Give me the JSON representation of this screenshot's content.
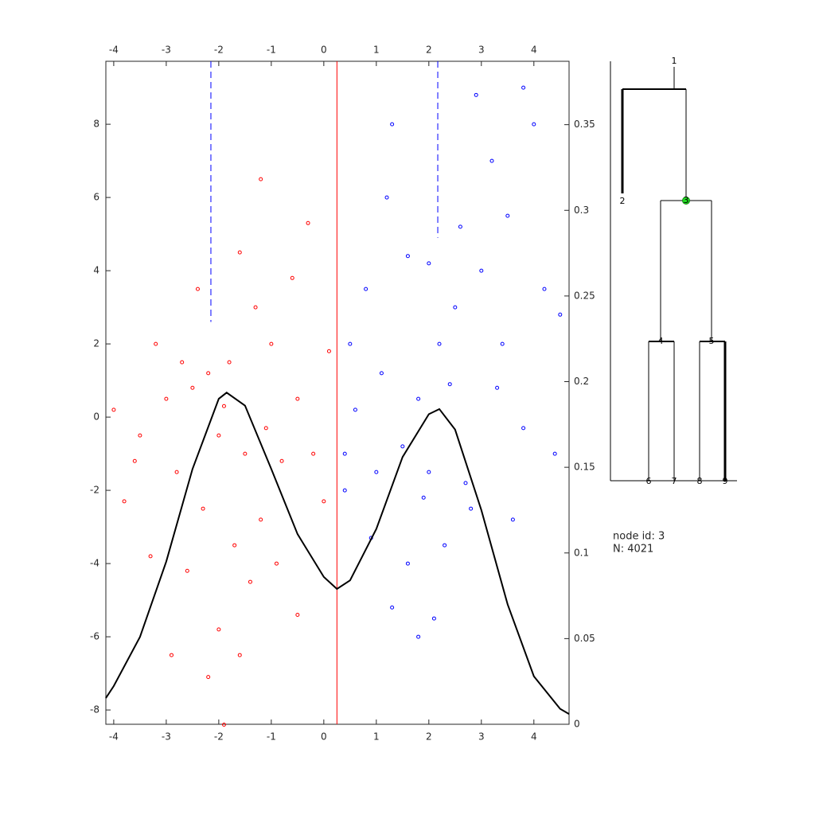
{
  "chart_data": {
    "type": "scatter",
    "xlim": [
      -4.15,
      4.67
    ],
    "ylim": [
      -8.39,
      9.72
    ],
    "y2lim": [
      0,
      0.387
    ],
    "xticks": [
      -4,
      -3,
      -2,
      -1,
      0,
      1,
      2,
      3,
      4
    ],
    "yticks": [
      -8,
      -6,
      -4,
      -2,
      0,
      2,
      4,
      6,
      8
    ],
    "y2ticks": [
      0,
      0.05,
      0.1,
      0.15,
      0.2,
      0.25,
      0.3,
      0.35
    ],
    "series": [
      {
        "type": "scatter",
        "color": "#ff0000",
        "x": [
          -2.2,
          -2.5,
          -3.0,
          -1.8,
          -2.0,
          -1.5,
          -3.5,
          -2.8,
          -2.3,
          -1.7,
          -1.4,
          -2.0,
          -1.6,
          -1.2,
          -0.8,
          -0.5,
          -0.2,
          0.1,
          -1.0,
          -1.3,
          -1.6,
          -1.2,
          -3.2,
          -3.8,
          -4.0,
          -3.3,
          -2.6,
          -2.2,
          -1.9,
          -0.9,
          -0.5,
          -2.9,
          -0.3,
          -2.4,
          -1.9,
          -2.7,
          -3.6,
          -1.1,
          -0.6,
          0.0
        ],
        "values": [
          1.2,
          0.8,
          0.5,
          1.5,
          -0.5,
          -1.0,
          -0.5,
          -1.5,
          -2.5,
          -3.5,
          -4.5,
          -5.8,
          -6.5,
          -2.8,
          -1.2,
          0.5,
          -1.0,
          1.8,
          2.0,
          3.0,
          4.5,
          6.5,
          2.0,
          -2.3,
          0.2,
          -3.8,
          -4.2,
          -7.1,
          -8.4,
          -4.0,
          -5.4,
          -6.5,
          5.3,
          3.5,
          0.3,
          1.5,
          -1.2,
          -0.3,
          3.8,
          -2.3
        ]
      },
      {
        "type": "scatter",
        "color": "#0000ff",
        "x": [
          2.2,
          2.5,
          1.8,
          2.0,
          1.5,
          1.0,
          0.6,
          0.4,
          2.8,
          3.0,
          3.5,
          3.8,
          4.0,
          2.9,
          3.2,
          1.3,
          1.2,
          0.8,
          0.5,
          1.6,
          2.6,
          3.4,
          4.2,
          4.4,
          3.8,
          2.3,
          1.6,
          1.3,
          2.1,
          1.8,
          3.6,
          0.9,
          0.4,
          2.4,
          1.9,
          3.3,
          2.7,
          4.5,
          1.1,
          2.0
        ],
        "values": [
          2.0,
          3.0,
          0.5,
          -1.5,
          -0.8,
          -1.5,
          0.2,
          -2.0,
          -2.5,
          4.0,
          5.5,
          9.0,
          8.0,
          8.8,
          7.0,
          8.0,
          6.0,
          3.5,
          2.0,
          4.4,
          5.2,
          2.0,
          3.5,
          -1.0,
          -0.3,
          -3.5,
          -4.0,
          -5.2,
          -5.5,
          -6.0,
          -2.8,
          -3.3,
          -1.0,
          0.9,
          -2.2,
          0.8,
          -1.8,
          2.8,
          1.2,
          4.2
        ]
      },
      {
        "type": "line",
        "axis": "y2",
        "color": "#000000",
        "x": [
          -4.15,
          -4,
          -3.5,
          -3,
          -2.5,
          -2,
          -1.85,
          -1.5,
          -1,
          -0.5,
          0,
          0.25,
          0.5,
          1,
          1.5,
          2,
          2.2,
          2.5,
          3,
          3.5,
          4,
          4.5,
          4.67
        ],
        "values": [
          0.0153,
          0.0223,
          0.051,
          0.095,
          0.149,
          0.19,
          0.1936,
          0.186,
          0.149,
          0.111,
          0.086,
          0.079,
          0.084,
          0.114,
          0.156,
          0.181,
          0.184,
          0.172,
          0.125,
          0.07,
          0.028,
          0.009,
          0.006
        ]
      }
    ],
    "vlines": [
      {
        "x": 0.25,
        "color": "#ff0000",
        "dashed": false
      },
      {
        "x": -2.15,
        "y_end": 2.6,
        "color": "#0000ff",
        "dashed": true
      },
      {
        "x": 2.17,
        "y_end": 4.9,
        "color": "#0000ff",
        "dashed": true
      }
    ]
  },
  "dendrogram": {
    "nodes": [
      "1",
      "2",
      "3",
      "4",
      "5",
      "6",
      "7",
      "8",
      "9"
    ],
    "info": [
      "node id: 3",
      "N: 4021"
    ]
  }
}
